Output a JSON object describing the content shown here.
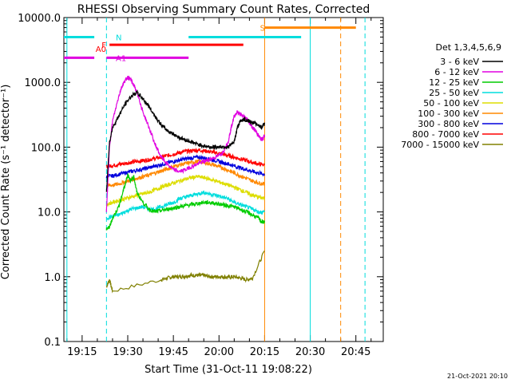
{
  "chart_data": {
    "type": "line",
    "title": "RHESSI Observing Summary Count Rates, Corrected",
    "xlabel": "Start Time (31-Oct-11 19:08:22)",
    "ylabel": "Corrected Count Rate (s⁻¹ detector⁻¹)",
    "ylog": true,
    "xlim_minutes": [
      9,
      50
    ],
    "ylim": [
      0.1,
      10000
    ],
    "xticks": [
      {
        "m": 15,
        "label": "19:15"
      },
      {
        "m": 30,
        "label": "19:30"
      },
      {
        "m": 45,
        "label": "19:45"
      },
      {
        "m": 60,
        "label": "20:00"
      },
      {
        "m": 75,
        "label": "20:15"
      },
      {
        "m": 90,
        "label": "20:30"
      },
      {
        "m": 105,
        "label": "20:45"
      }
    ],
    "yticks": [
      {
        "v": 10000,
        "label": "10000.0"
      },
      {
        "v": 1000,
        "label": "1000.0"
      },
      {
        "v": 100,
        "label": "100.0"
      },
      {
        "v": 10,
        "label": "10.0"
      },
      {
        "v": 1,
        "label": "1.0"
      },
      {
        "v": 0.1,
        "label": "0.1"
      }
    ],
    "legend_title": "Det 1,3,4,5,6,9",
    "series": [
      {
        "name": "3 - 6 keV",
        "color": "#000000",
        "x": [
          23,
          24,
          25,
          27,
          29,
          31,
          33,
          35,
          37,
          39,
          41,
          43,
          45,
          47,
          49,
          51,
          53,
          55,
          57,
          59,
          61,
          63,
          65,
          66,
          67,
          68,
          69,
          70,
          71,
          72,
          73,
          74,
          75
        ],
        "y": [
          20,
          120,
          200,
          300,
          450,
          600,
          700,
          560,
          420,
          300,
          220,
          180,
          160,
          140,
          130,
          120,
          110,
          105,
          100,
          100,
          102,
          100,
          120,
          200,
          250,
          270,
          260,
          250,
          240,
          230,
          220,
          200,
          230
        ]
      },
      {
        "name": "6 - 12 keV",
        "color": "#e000e0",
        "x": [
          23,
          24,
          25,
          27,
          28,
          29,
          30,
          31,
          32,
          33,
          34,
          35,
          37,
          39,
          41,
          43,
          45,
          47,
          49,
          51,
          53,
          55,
          57,
          59,
          61,
          63,
          64,
          65,
          66,
          67,
          68,
          69,
          70,
          71,
          72,
          73,
          74,
          75
        ],
        "y": [
          10,
          100,
          250,
          600,
          850,
          1050,
          1200,
          1100,
          900,
          700,
          500,
          350,
          200,
          110,
          70,
          55,
          45,
          42,
          45,
          50,
          55,
          60,
          65,
          70,
          80,
          120,
          200,
          300,
          350,
          320,
          300,
          280,
          240,
          200,
          180,
          150,
          130,
          150
        ]
      },
      {
        "name": "12 - 25 keV",
        "color": "#00cc00",
        "x": [
          23,
          24,
          25,
          27,
          29,
          30,
          31,
          32,
          33,
          35,
          37,
          39,
          41,
          43,
          45,
          47,
          49,
          51,
          53,
          55,
          57,
          59,
          61,
          63,
          65,
          67,
          69,
          71,
          73,
          74,
          75
        ],
        "y": [
          5.5,
          5.8,
          8,
          12,
          25,
          38,
          30,
          35,
          20,
          14,
          11,
          10,
          10.5,
          11,
          11.5,
          12,
          12.5,
          13,
          13.5,
          14,
          14,
          13.5,
          13,
          12.5,
          12,
          11,
          10,
          9,
          8,
          7,
          7
        ]
      },
      {
        "name": "25 - 50 keV",
        "color": "#00dddd",
        "x": [
          23,
          25,
          27,
          29,
          31,
          33,
          35,
          37,
          39,
          41,
          43,
          45,
          47,
          49,
          51,
          53,
          55,
          57,
          59,
          61,
          63,
          65,
          67,
          69,
          71,
          73,
          75
        ],
        "y": [
          8,
          8.5,
          9,
          10,
          11,
          11.5,
          12,
          11,
          11,
          12,
          13,
          14,
          16,
          17,
          18,
          19,
          20,
          19,
          18,
          17,
          16,
          14,
          13,
          12,
          11,
          10,
          10
        ]
      },
      {
        "name": "50 - 100 keV",
        "color": "#dddd00",
        "x": [
          23,
          25,
          27,
          29,
          31,
          33,
          35,
          37,
          39,
          41,
          43,
          45,
          47,
          49,
          51,
          53,
          55,
          57,
          59,
          61,
          63,
          65,
          67,
          69,
          71,
          73,
          75
        ],
        "y": [
          13,
          14,
          15,
          16,
          17,
          18,
          19,
          20,
          22,
          24,
          26,
          28,
          30,
          32,
          34,
          35,
          34,
          32,
          30,
          28,
          26,
          24,
          22,
          20,
          18,
          17,
          16
        ]
      },
      {
        "name": "100 - 300 keV",
        "color": "#ff8800",
        "x": [
          23,
          25,
          27,
          29,
          31,
          33,
          35,
          37,
          39,
          41,
          43,
          45,
          47,
          49,
          51,
          53,
          55,
          57,
          59,
          61,
          63,
          65,
          67,
          69,
          71,
          73,
          75
        ],
        "y": [
          25,
          26,
          27,
          29,
          31,
          33,
          35,
          37,
          40,
          43,
          46,
          50,
          53,
          56,
          58,
          60,
          58,
          55,
          52,
          48,
          44,
          40,
          36,
          33,
          30,
          28,
          27
        ]
      },
      {
        "name": "300 - 800 keV",
        "color": "#0000dd",
        "x": [
          23,
          25,
          27,
          29,
          31,
          33,
          35,
          37,
          39,
          41,
          43,
          45,
          47,
          49,
          51,
          53,
          55,
          57,
          59,
          61,
          63,
          65,
          67,
          69,
          71,
          73,
          75
        ],
        "y": [
          35,
          36,
          38,
          40,
          42,
          44,
          46,
          48,
          51,
          54,
          57,
          60,
          63,
          66,
          68,
          70,
          68,
          65,
          62,
          58,
          55,
          51,
          48,
          45,
          42,
          40,
          38
        ]
      },
      {
        "name": "800 - 7000 keV",
        "color": "#ff0000",
        "x": [
          23,
          25,
          27,
          29,
          31,
          33,
          35,
          37,
          39,
          41,
          43,
          45,
          47,
          49,
          51,
          53,
          55,
          57,
          59,
          61,
          63,
          65,
          67,
          69,
          71,
          73,
          75
        ],
        "y": [
          50,
          52,
          54,
          56,
          58,
          60,
          62,
          64,
          67,
          70,
          74,
          78,
          82,
          86,
          88,
          90,
          88,
          85,
          82,
          78,
          74,
          70,
          66,
          62,
          58,
          55,
          53
        ]
      },
      {
        "name": "7000 - 15000 keV",
        "color": "#808000",
        "x": [
          23,
          24,
          25,
          41,
          43,
          45,
          47,
          49,
          51,
          53,
          55,
          57,
          59,
          61,
          63,
          65,
          67,
          69,
          71,
          75
        ],
        "y": [
          0.7,
          0.9,
          0.6,
          0.9,
          0.95,
          1.0,
          1.0,
          1.02,
          1.05,
          1.05,
          1.05,
          1.0,
          1.0,
          1.0,
          0.98,
          1.0,
          0.95,
          0.9,
          0.95,
          2.5
        ]
      }
    ],
    "attenuator_bars": [
      {
        "label": "N",
        "color": "#00dddd",
        "y": 5000,
        "segments": [
          [
            9,
            19
          ],
          [
            87,
            50
          ]
        ]
      },
      {
        "label": "F",
        "color": "#ff0000",
        "y": 3800,
        "segments": [
          [
            24,
            68
          ]
        ]
      },
      {
        "label": "A0",
        "color": "#ff0000",
        "y": 3300,
        "segments": []
      },
      {
        "label": "S",
        "color": "#ff8800",
        "y": 7000,
        "segments": [
          [
            75,
            105
          ]
        ]
      },
      {
        "label": "A1",
        "color": "#e000e0",
        "y": 2400,
        "segments": [
          [
            9,
            19
          ],
          [
            23,
            50
          ]
        ]
      }
    ],
    "vlines": [
      {
        "m": 10,
        "color": "#00dddd",
        "style": "solid"
      },
      {
        "m": 23,
        "color": "#00dddd",
        "style": "dashed"
      },
      {
        "m": 75,
        "color": "#ff8800",
        "style": "solid"
      },
      {
        "m": 90,
        "color": "#00dddd",
        "style": "solid"
      },
      {
        "m": 100,
        "color": "#ff8800",
        "style": "dashed"
      },
      {
        "m": 108,
        "color": "#00dddd",
        "style": "dashed"
      }
    ],
    "legend_placement": "right",
    "date_stamp": "21-Oct-2021 20:10"
  }
}
